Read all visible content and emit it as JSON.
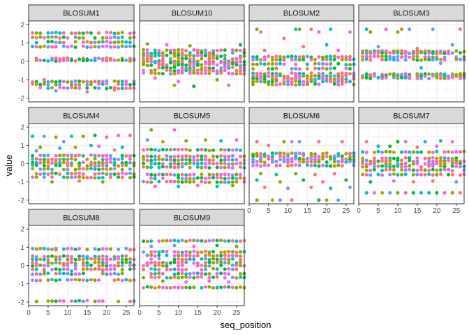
{
  "chart_data": {
    "type": "scatter",
    "xlabel": "seq_position",
    "ylabel": "value",
    "xlim": [
      0,
      27
    ],
    "ylim": [
      -2.2,
      2.2
    ],
    "x_ticks": [
      0,
      5,
      10,
      15,
      20,
      25
    ],
    "y_ticks": [
      -2,
      -1,
      0,
      1,
      2
    ],
    "x_tick_labels": [
      "0",
      "5",
      "10",
      "15",
      "20",
      "25"
    ],
    "y_tick_labels": [
      "-2",
      "-1",
      "0",
      "1",
      "2"
    ],
    "grid": true,
    "x_positions": [
      1,
      27
    ],
    "point_colors": [
      "#F8766D",
      "#00BA38",
      "#619CFF",
      "#E76BF3",
      "#00BFC4",
      "#B79F00",
      "#7CAE00",
      "#FF61C3"
    ],
    "panels": [
      {
        "name": "BLOSUM1",
        "levels": [
          1.55,
          1.3,
          1.05,
          0.8,
          0.15,
          0.05,
          -1.1,
          -1.25,
          -1.45
        ],
        "extras": [
          [
            15,
            -1.65
          ],
          [
            7,
            -1.6
          ],
          [
            22,
            -1.55
          ],
          [
            4,
            -1.0
          ]
        ]
      },
      {
        "name": "BLOSUM10",
        "levels": [
          0.6,
          0.45,
          0.3,
          0.15,
          0.0,
          -0.1,
          -0.2,
          -0.35,
          -0.5,
          -0.65
        ],
        "extras": [
          [
            2,
            0.95
          ],
          [
            7,
            0.9
          ],
          [
            13,
            0.85
          ],
          [
            26,
            0.9
          ],
          [
            4,
            -0.9
          ],
          [
            10,
            -1.1
          ],
          [
            20,
            -1.0
          ],
          [
            9,
            -1.3
          ],
          [
            14,
            -1.35
          ],
          [
            23,
            -1.3
          ]
        ]
      },
      {
        "name": "BLOSUM2",
        "levels": [
          0.25,
          0.1,
          -0.15,
          -0.4,
          -0.65,
          -0.8,
          -0.95,
          -1.1,
          -1.25
        ],
        "extras": [
          [
            2,
            1.75
          ],
          [
            3,
            1.6
          ],
          [
            9,
            1.25
          ],
          [
            12,
            1.75
          ],
          [
            13,
            1.75
          ],
          [
            16,
            1.75
          ],
          [
            18,
            1.6
          ],
          [
            21,
            1.75
          ],
          [
            26,
            1.6
          ],
          [
            14,
            0.8
          ],
          [
            20,
            0.9
          ],
          [
            4,
            0.6
          ],
          [
            23,
            0.6
          ]
        ]
      },
      {
        "name": "BLOSUM3",
        "levels": [
          0.55,
          0.45,
          0.25,
          0.1,
          -0.7,
          -0.8,
          -0.9
        ],
        "extras": [
          [
            2,
            1.75
          ],
          [
            3,
            1.6
          ],
          [
            7,
            1.75
          ],
          [
            10,
            1.6
          ],
          [
            11,
            1.75
          ],
          [
            13,
            1.75
          ],
          [
            19,
            1.75
          ],
          [
            26,
            1.75
          ],
          [
            5,
            0.8
          ],
          [
            15,
            0.7
          ],
          [
            21,
            -0.1
          ],
          [
            16,
            -0.35
          ],
          [
            24,
            0.9
          ]
        ]
      },
      {
        "name": "BLOSUM4",
        "levels": [
          0.45,
          0.25,
          0.05,
          -0.1,
          -0.3,
          -0.55,
          -0.75
        ],
        "extras": [
          [
            1,
            1.5
          ],
          [
            4,
            1.5
          ],
          [
            7,
            1.45
          ],
          [
            9,
            1.2
          ],
          [
            11,
            1.5
          ],
          [
            14,
            1.5
          ],
          [
            17,
            1.55
          ],
          [
            20,
            1.45
          ],
          [
            23,
            1.55
          ],
          [
            26,
            1.55
          ],
          [
            3,
            0.9
          ],
          [
            8,
            0.85
          ],
          [
            12,
            0.9
          ],
          [
            16,
            1.0
          ],
          [
            18,
            0.95
          ],
          [
            24,
            0.9
          ],
          [
            6,
            -1.0
          ],
          [
            13,
            -0.95
          ],
          [
            19,
            -1.0
          ],
          [
            2,
            0.7
          ],
          [
            22,
            0.75
          ]
        ]
      },
      {
        "name": "BLOSUM5",
        "levels": [
          0.75,
          0.4,
          0.2,
          0.0,
          -0.2,
          -0.6,
          -0.8,
          -1.0
        ],
        "extras": [
          [
            3,
            1.85
          ],
          [
            9,
            1.85
          ],
          [
            2,
            1.3
          ],
          [
            6,
            1.2
          ],
          [
            12,
            1.25
          ],
          [
            17,
            1.3
          ],
          [
            21,
            1.25
          ],
          [
            25,
            1.3
          ],
          [
            4,
            -1.25
          ],
          [
            10,
            -1.25
          ],
          [
            15,
            -1.2
          ],
          [
            20,
            -1.25
          ],
          [
            24,
            -1.2
          ]
        ]
      },
      {
        "name": "BLOSUM6",
        "levels": [
          0.55,
          0.4,
          0.25,
          0.1,
          -0.1
        ],
        "extras": [
          [
            2,
            1.2
          ],
          [
            5,
            1.0
          ],
          [
            9,
            1.2
          ],
          [
            11,
            1.2
          ],
          [
            13,
            1.2
          ],
          [
            18,
            1.2
          ],
          [
            24,
            1.2
          ],
          [
            3,
            -0.55
          ],
          [
            7,
            -0.6
          ],
          [
            12,
            -0.55
          ],
          [
            17,
            -0.6
          ],
          [
            22,
            -0.55
          ],
          [
            2,
            -0.9
          ],
          [
            8,
            -1.0
          ],
          [
            14,
            -0.9
          ],
          [
            19,
            -1.0
          ],
          [
            25,
            -0.9
          ],
          [
            4,
            -1.3
          ],
          [
            10,
            -1.35
          ],
          [
            16,
            -1.3
          ],
          [
            21,
            -1.35
          ],
          [
            26,
            -1.3
          ],
          [
            2,
            -2.0
          ],
          [
            6,
            -2.0
          ],
          [
            8,
            -2.0
          ],
          [
            11,
            -2.0
          ],
          [
            18,
            -2.0
          ],
          [
            20,
            -2.0
          ],
          [
            23,
            -2.0
          ]
        ]
      },
      {
        "name": "BLOSUM7",
        "levels": [
          0.65,
          0.3,
          0.15,
          0.0,
          -0.15,
          -0.35,
          -0.6
        ],
        "extras": [
          [
            2,
            1.2
          ],
          [
            5,
            0.95
          ],
          [
            10,
            1.2
          ],
          [
            12,
            1.2
          ],
          [
            17,
            1.2
          ],
          [
            21,
            1.25
          ],
          [
            24,
            1.2
          ],
          [
            8,
            0.95
          ],
          [
            15,
            0.9
          ],
          [
            20,
            0.95
          ],
          [
            3,
            -1.0
          ],
          [
            9,
            -0.95
          ],
          [
            14,
            -1.0
          ],
          [
            19,
            -0.95
          ],
          [
            25,
            -1.0
          ],
          [
            2,
            -1.6
          ],
          [
            4,
            -1.6
          ],
          [
            6,
            -1.6
          ],
          [
            8,
            -1.6
          ],
          [
            10,
            -1.6
          ],
          [
            12,
            -1.6
          ],
          [
            14,
            -1.6
          ],
          [
            16,
            -1.6
          ],
          [
            18,
            -1.6
          ],
          [
            20,
            -1.6
          ],
          [
            22,
            -1.6
          ],
          [
            24,
            -1.6
          ],
          [
            26,
            -1.6
          ]
        ]
      },
      {
        "name": "BLOSUM8",
        "levels": [
          0.9,
          0.5,
          0.35,
          0.15,
          0.0,
          -0.2,
          -0.45,
          -0.8,
          -1.95
        ],
        "extras": [
          [
            2,
            0.9
          ],
          [
            7,
            0.85
          ],
          [
            26,
            0.85
          ],
          [
            4,
            -0.35
          ],
          [
            11,
            -0.3
          ],
          [
            19,
            -0.35
          ]
        ]
      },
      {
        "name": "BLOSUM9",
        "levels": [
          1.35,
          0.75,
          0.55,
          0.35,
          0.15,
          0.0,
          -0.2,
          -0.45,
          -0.65,
          -1.2
        ],
        "extras": [
          [
            3,
            1.05
          ],
          [
            9,
            1.1
          ],
          [
            14,
            1.05
          ],
          [
            20,
            1.1
          ],
          [
            25,
            1.05
          ],
          [
            6,
            -0.85
          ],
          [
            12,
            -0.9
          ],
          [
            18,
            -0.85
          ],
          [
            23,
            -0.9
          ]
        ]
      }
    ]
  }
}
